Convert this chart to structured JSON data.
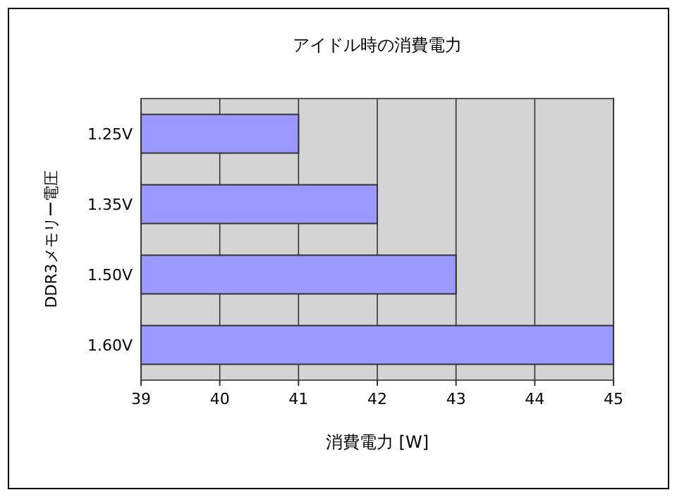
{
  "chart_data": {
    "type": "bar",
    "orientation": "horizontal",
    "title": "アイドル時の消費電力",
    "xlabel": "消費電力 [W]",
    "ylabel": "DDR3メモリー電圧",
    "categories": [
      "1.25V",
      "1.35V",
      "1.50V",
      "1.60V"
    ],
    "values": [
      41,
      42,
      43,
      45
    ],
    "color": "#9999ff",
    "xlim": [
      39,
      45
    ],
    "xticks": [
      39,
      40,
      41,
      42,
      43,
      44,
      45
    ],
    "grid": "x"
  }
}
